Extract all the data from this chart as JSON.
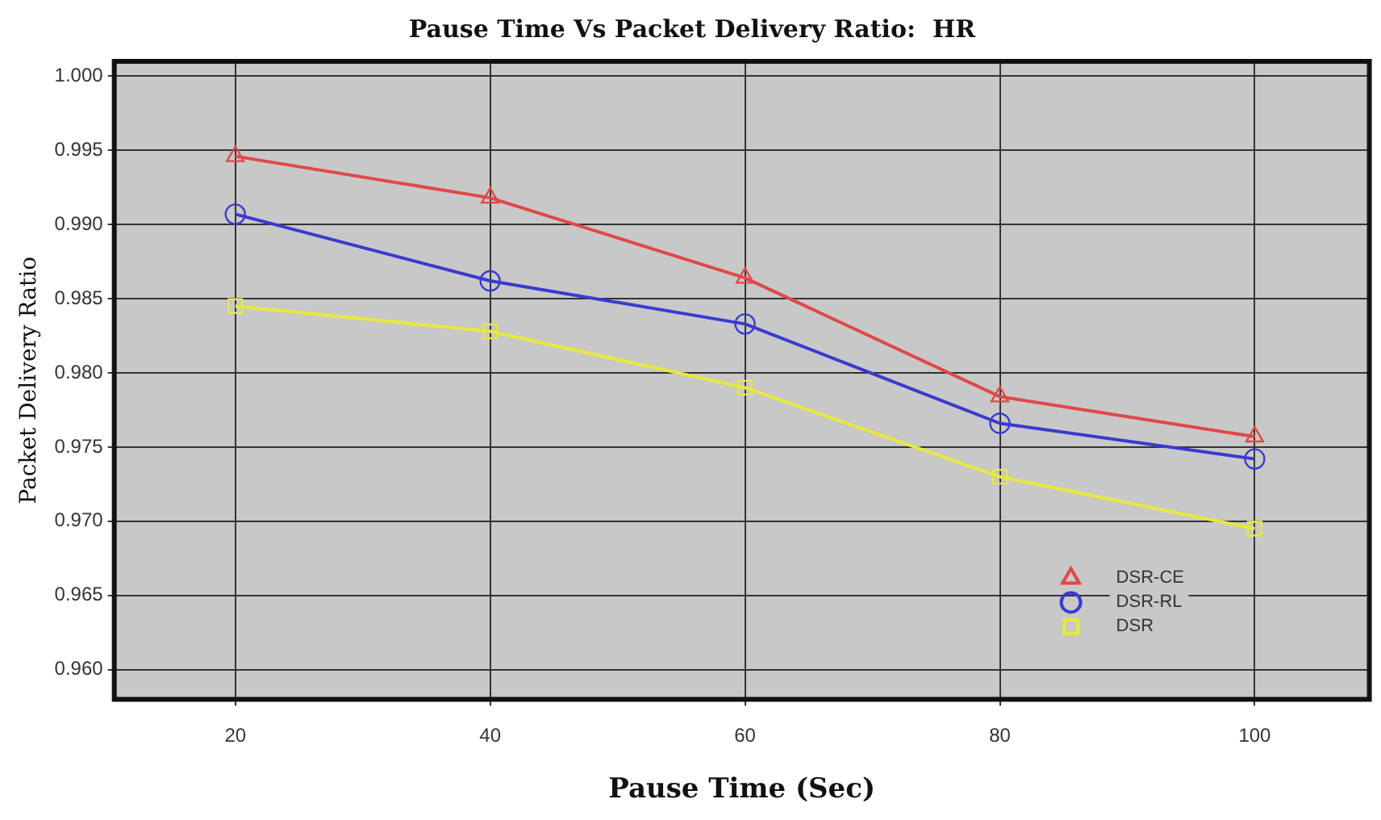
{
  "chart_data": {
    "type": "line",
    "title": "Pause Time Vs Packet Delivery Ratio:  HR",
    "xlabel": "Pause Time (Sec)",
    "ylabel": "Packet Delivery Ratio",
    "x": [
      20,
      40,
      60,
      80,
      100
    ],
    "series": [
      {
        "name": "DSR-CE",
        "color": "#e04848",
        "marker": "triangle",
        "values": [
          0.9946,
          0.9918,
          0.9864,
          0.9784,
          0.9757
        ]
      },
      {
        "name": "DSR-RL",
        "color": "#3a3ad0",
        "marker": "circle",
        "values": [
          0.9907,
          0.9862,
          0.9833,
          0.9766,
          0.9742
        ]
      },
      {
        "name": "DSR",
        "color": "#e8e840",
        "marker": "square",
        "values": [
          0.9845,
          0.9828,
          0.979,
          0.973,
          0.9695
        ]
      }
    ],
    "xlim": [
      10.5,
      109
    ],
    "xticks": [
      20,
      40,
      60,
      80,
      100
    ],
    "ylim": [
      0.958,
      1.001
    ],
    "yticks": [
      {
        "value": 0.96,
        "label": "0.960"
      },
      {
        "value": 0.965,
        "label": "0.965"
      },
      {
        "value": 0.97,
        "label": "0.970"
      },
      {
        "value": 0.975,
        "label": "0.975"
      },
      {
        "value": 0.98,
        "label": "0.980"
      },
      {
        "value": 0.985,
        "label": "0.985"
      },
      {
        "value": 0.99,
        "label": "0.990"
      },
      {
        "value": 0.995,
        "label": "0.995"
      },
      {
        "value": 1,
        "label": "1.000"
      }
    ],
    "grid": true,
    "legend": "bottom right",
    "line_style": "solid"
  }
}
